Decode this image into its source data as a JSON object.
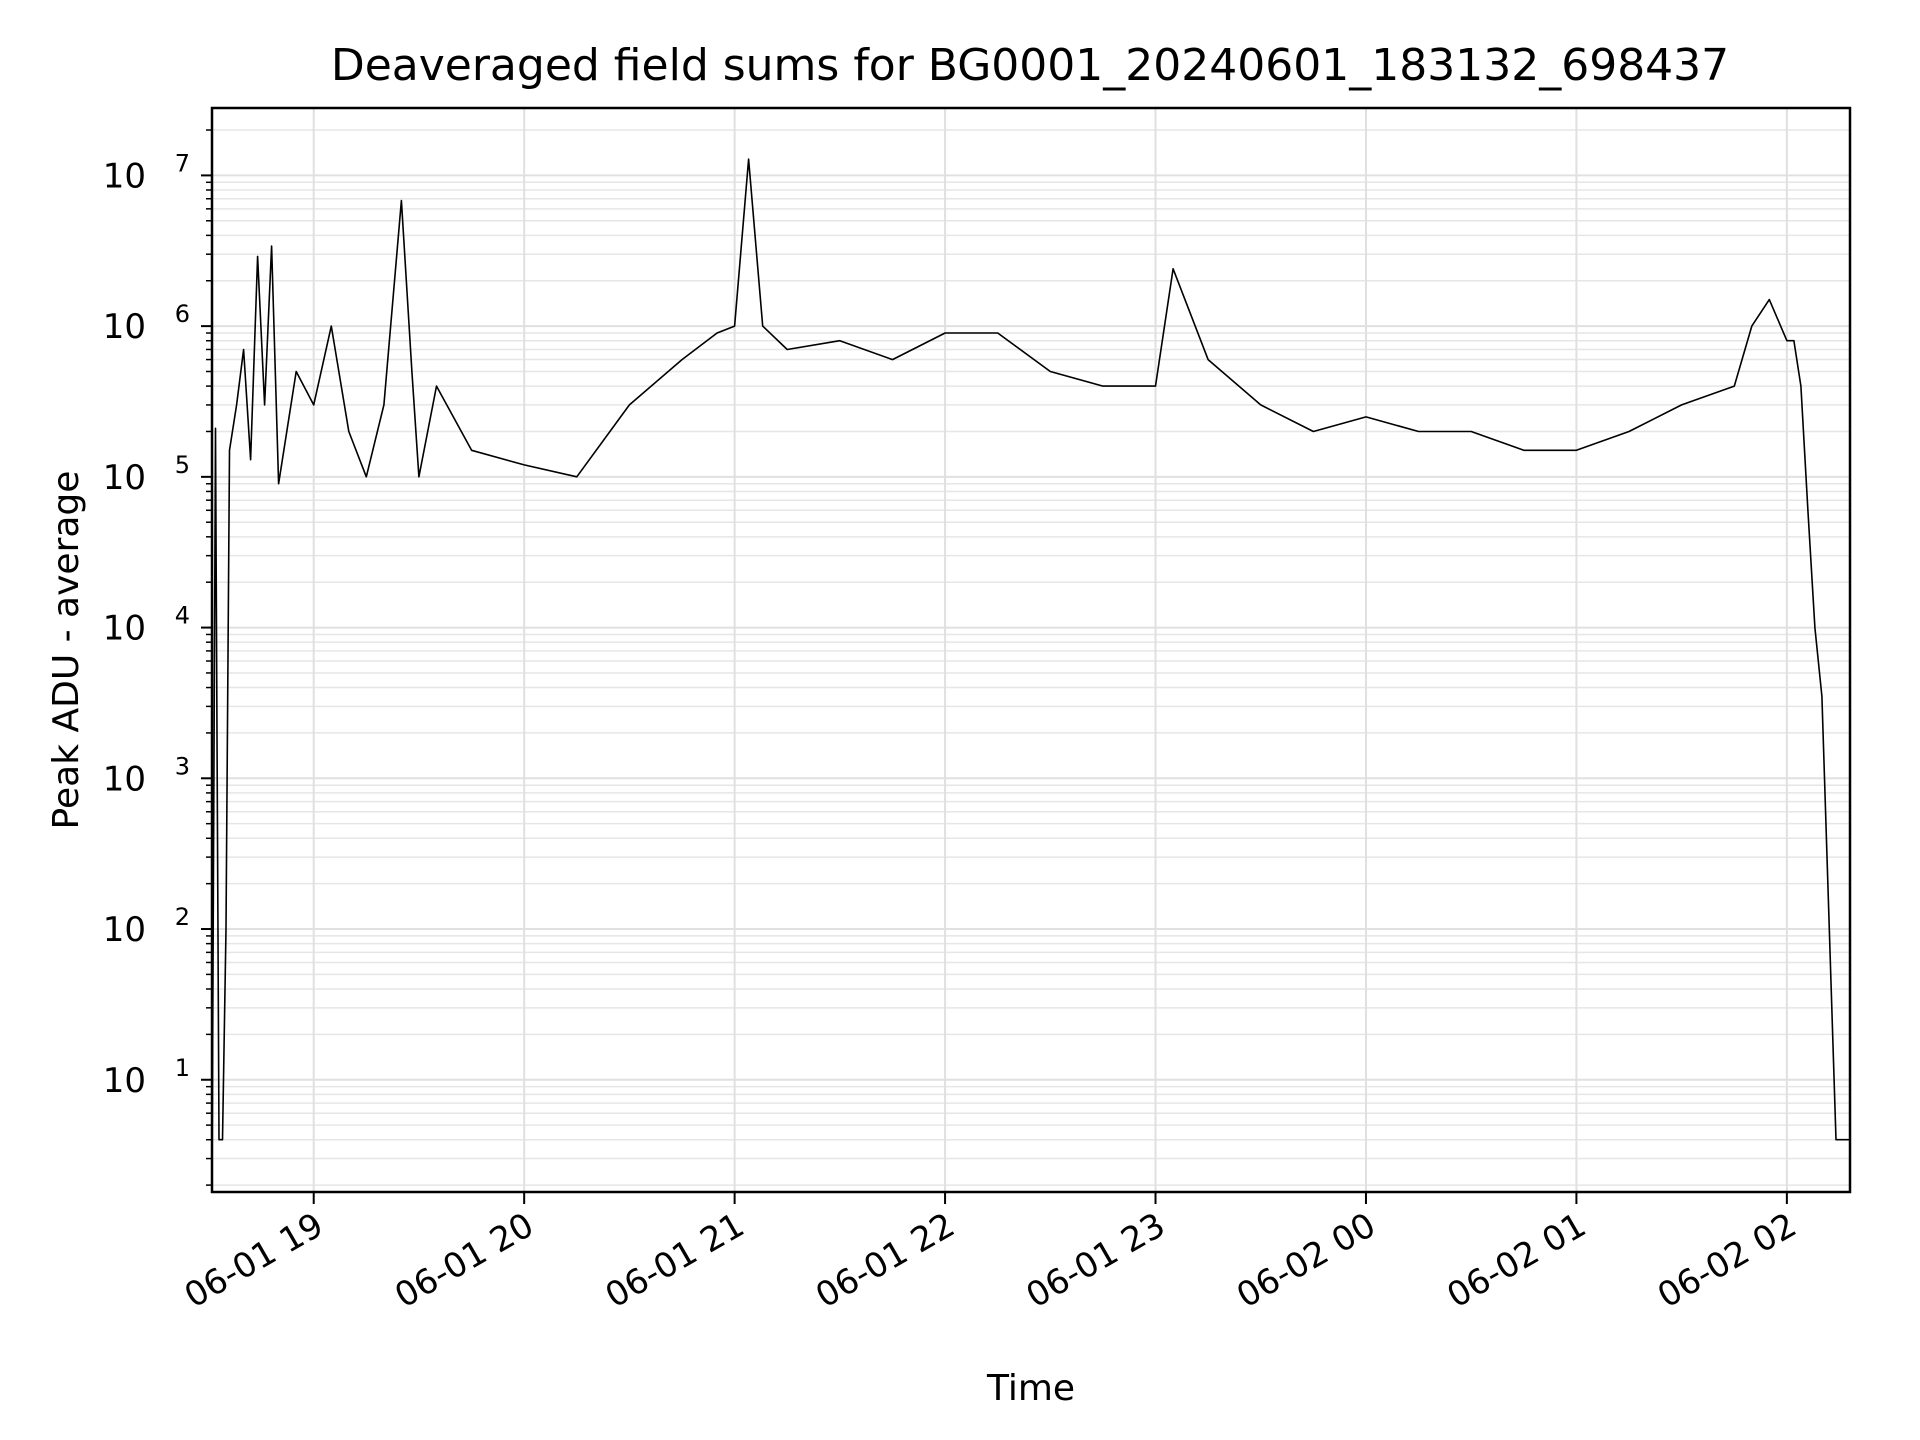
{
  "chart_data": {
    "type": "line",
    "title": "Deaveraged field sums for BG0001_20240601_183132_698437",
    "xlabel": "Time",
    "ylabel": "Peak ADU - average",
    "x_ticks": [
      "06-01 19",
      "06-01 20",
      "06-01 21",
      "06-01 22",
      "06-01 23",
      "06-02 00",
      "06-02 01",
      "06-02 02"
    ],
    "y_ticks": [
      {
        "base": "10",
        "exp": "1"
      },
      {
        "base": "10",
        "exp": "2"
      },
      {
        "base": "10",
        "exp": "3"
      },
      {
        "base": "10",
        "exp": "4"
      },
      {
        "base": "10",
        "exp": "5"
      },
      {
        "base": "10",
        "exp": "6"
      },
      {
        "base": "10",
        "exp": "7"
      }
    ],
    "yscale": "log",
    "ylim": [
      1.8,
      28000000
    ],
    "xlim": [
      "2024-06-01 18:31",
      "2024-06-02 02:18"
    ],
    "grid": true,
    "line_color": "#000000",
    "series": [
      {
        "x": [
          "2024-06-01 18:31",
          "2024-06-01 18:32",
          "2024-06-01 18:33",
          "2024-06-01 18:34",
          "2024-06-01 18:35",
          "2024-06-01 18:36",
          "2024-06-01 18:38",
          "2024-06-01 18:40",
          "2024-06-01 18:42",
          "2024-06-01 18:44",
          "2024-06-01 18:46",
          "2024-06-01 18:48",
          "2024-06-01 18:50",
          "2024-06-01 18:55",
          "2024-06-01 19:00",
          "2024-06-01 19:05",
          "2024-06-01 19:10",
          "2024-06-01 19:15",
          "2024-06-01 19:20",
          "2024-06-01 19:25",
          "2024-06-01 19:28",
          "2024-06-01 19:30",
          "2024-06-01 19:35",
          "2024-06-01 19:45",
          "2024-06-01 20:00",
          "2024-06-01 20:15",
          "2024-06-01 20:30",
          "2024-06-01 20:45",
          "2024-06-01 20:55",
          "2024-06-01 21:00",
          "2024-06-01 21:04",
          "2024-06-01 21:08",
          "2024-06-01 21:15",
          "2024-06-01 21:30",
          "2024-06-01 21:45",
          "2024-06-01 22:00",
          "2024-06-01 22:15",
          "2024-06-01 22:30",
          "2024-06-01 22:45",
          "2024-06-01 23:00",
          "2024-06-01 23:05",
          "2024-06-01 23:15",
          "2024-06-01 23:30",
          "2024-06-01 23:45",
          "2024-06-02 00:00",
          "2024-06-02 00:15",
          "2024-06-02 00:30",
          "2024-06-02 00:45",
          "2024-06-02 01:00",
          "2024-06-02 01:15",
          "2024-06-02 01:30",
          "2024-06-02 01:45",
          "2024-06-02 01:50",
          "2024-06-02 01:55",
          "2024-06-02 02:00",
          "2024-06-02 02:02",
          "2024-06-02 02:04",
          "2024-06-02 02:06",
          "2024-06-02 02:08",
          "2024-06-02 02:10",
          "2024-06-02 02:14",
          "2024-06-02 02:18"
        ],
        "y": [
          1.8,
          210000,
          4,
          4,
          100,
          150000,
          300000,
          700000,
          130000,
          2900000,
          300000,
          3400000,
          90000,
          500000,
          300000,
          1000000,
          200000,
          100000,
          300000,
          6800000,
          500000,
          100000,
          400000,
          150000,
          120000,
          100000,
          300000,
          600000,
          900000,
          1000000,
          12800000,
          1000000,
          700000,
          800000,
          600000,
          900000,
          900000,
          500000,
          400000,
          400000,
          2400000,
          600000,
          300000,
          200000,
          250000,
          200000,
          200000,
          150000,
          150000,
          200000,
          300000,
          400000,
          1000000,
          1500000,
          800000,
          800000,
          400000,
          60000,
          10000,
          3500,
          4,
          4
        ]
      }
    ]
  }
}
